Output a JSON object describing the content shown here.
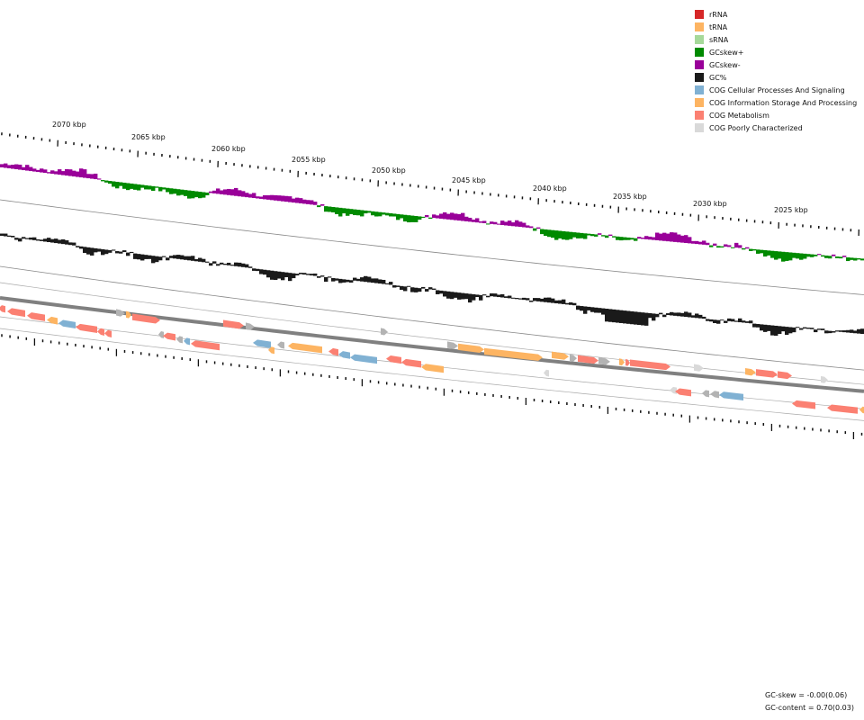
{
  "legend": [
    {
      "label": "rRNA",
      "color": "#d62728"
    },
    {
      "label": "tRNA",
      "color": "#fdb462"
    },
    {
      "label": "sRNA",
      "color": "#a6d99a"
    },
    {
      "label": "GCskew+",
      "color": "#008a00"
    },
    {
      "label": "GCskew-",
      "color": "#990099"
    },
    {
      "label": "GC%",
      "color": "#1a1a1a"
    },
    {
      "label": "COG Cellular Processes And Signaling",
      "color": "#80b1d3"
    },
    {
      "label": "COG Information Storage And Processing",
      "color": "#fdb462"
    },
    {
      "label": "COG Metabolism",
      "color": "#fb8072"
    },
    {
      "label": "COG Poorly Characterized",
      "color": "#d9d9d9"
    }
  ],
  "scale_labels": [
    "2070 kbp",
    "2065 kbp",
    "2060 kbp",
    "2055 kbp",
    "2050 kbp",
    "2045 kbp",
    "2040 kbp",
    "2035 kbp",
    "2030 kbp",
    "2025 kbp"
  ],
  "stats": {
    "gc_skew": "GC-skew = -0.00(0.06)",
    "gc_content": "GC-content = 0.70(0.03)"
  },
  "colors": {
    "gc_pos": "#008a00",
    "gc_neg": "#990099",
    "gc": "#1a1a1a",
    "cog_cell": "#80b1d3",
    "cog_info": "#fdb462",
    "cog_met": "#fb8072",
    "cog_poor": "#d9d9d9",
    "cog_unknown": "#b3b3b3"
  }
}
